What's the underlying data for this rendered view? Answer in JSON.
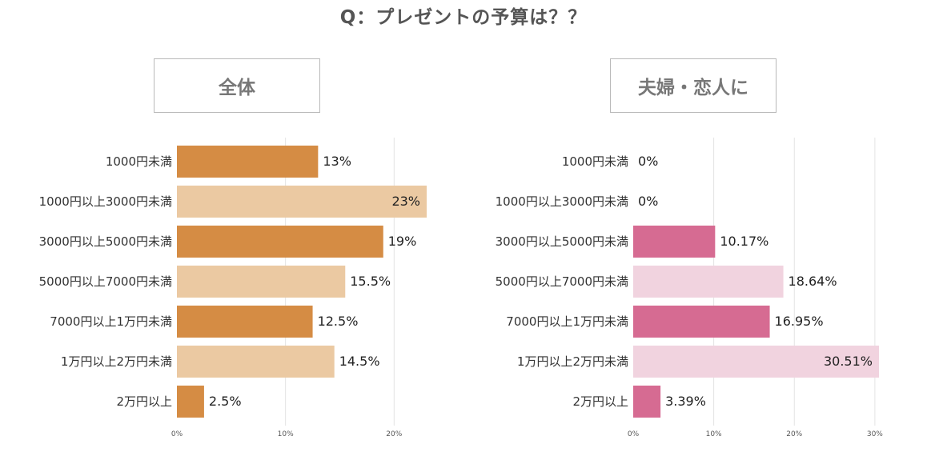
{
  "title": "Q：プレゼントの予算は？？",
  "panels": [
    {
      "label": "全体"
    },
    {
      "label": "夫婦・恋人に"
    }
  ],
  "chart_data": [
    {
      "type": "bar",
      "orientation": "horizontal",
      "title": "全体",
      "categories": [
        "1000円未満",
        "1000円以上3000円未満",
        "3000円以上5000円未満",
        "5000円以上7000円未満",
        "7000円以上1万円未満",
        "1万円以上2万円未満",
        "2万円以上"
      ],
      "values": [
        13,
        23,
        19,
        15.5,
        12.5,
        14.5,
        2.5
      ],
      "value_labels": [
        "13%",
        "23%",
        "19%",
        "15.5%",
        "12.5%",
        "14.5%",
        "2.5%"
      ],
      "xlim": [
        0,
        23
      ],
      "xticks": [
        0,
        10,
        20
      ],
      "xtick_labels": [
        "0%",
        "10%",
        "20%"
      ],
      "grid": true,
      "colors": [
        "#d58c44",
        "#ebc9a2"
      ]
    },
    {
      "type": "bar",
      "orientation": "horizontal",
      "title": "夫婦・恋人に",
      "categories": [
        "1000円未満",
        "1000円以上3000円未満",
        "3000円以上5000円未満",
        "5000円以上7000円未満",
        "7000円以上1万円未満",
        "1万円以上2万円未満",
        "2万円以上"
      ],
      "values": [
        0,
        0,
        10.17,
        18.64,
        16.95,
        30.51,
        3.39
      ],
      "value_labels": [
        "0%",
        "0%",
        "10.17%",
        "18.64%",
        "16.95%",
        "30.51%",
        "3.39%"
      ],
      "xlim": [
        0,
        30.51
      ],
      "xticks": [
        0,
        10,
        20,
        30
      ],
      "xtick_labels": [
        "0%",
        "10%",
        "20%",
        "30%"
      ],
      "grid": true,
      "colors": [
        "#d66b92",
        "#f1d3df"
      ]
    }
  ]
}
